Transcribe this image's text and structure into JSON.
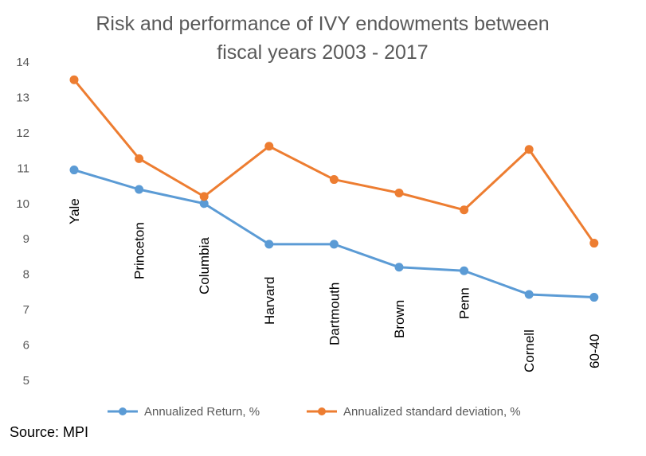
{
  "chart_data": {
    "type": "line",
    "title": [
      "Risk and performance of IVY endowments between",
      "fiscal years 2003 - 2017"
    ],
    "categories": [
      "Yale",
      "Princeton",
      "Columbia",
      "Harvard",
      "Dartmouth",
      "Brown",
      "Penn",
      "Cornell",
      "60-40"
    ],
    "series": [
      {
        "name": "Annualized Return, %",
        "color": "#5b9bd5",
        "values": [
          10.95,
          10.4,
          10.0,
          8.85,
          8.85,
          8.2,
          8.1,
          7.43,
          7.35
        ]
      },
      {
        "name": "Annualized standard deviation, %",
        "color": "#ed7d31",
        "values": [
          13.5,
          11.27,
          10.2,
          11.62,
          10.68,
          10.3,
          9.82,
          11.53,
          8.88
        ]
      }
    ],
    "ylim": [
      5,
      14
    ],
    "yticks": [
      5,
      6,
      7,
      8,
      9,
      10,
      11,
      12,
      13,
      14
    ],
    "grid": false,
    "legend": "bottom"
  },
  "source": "Source: MPI"
}
